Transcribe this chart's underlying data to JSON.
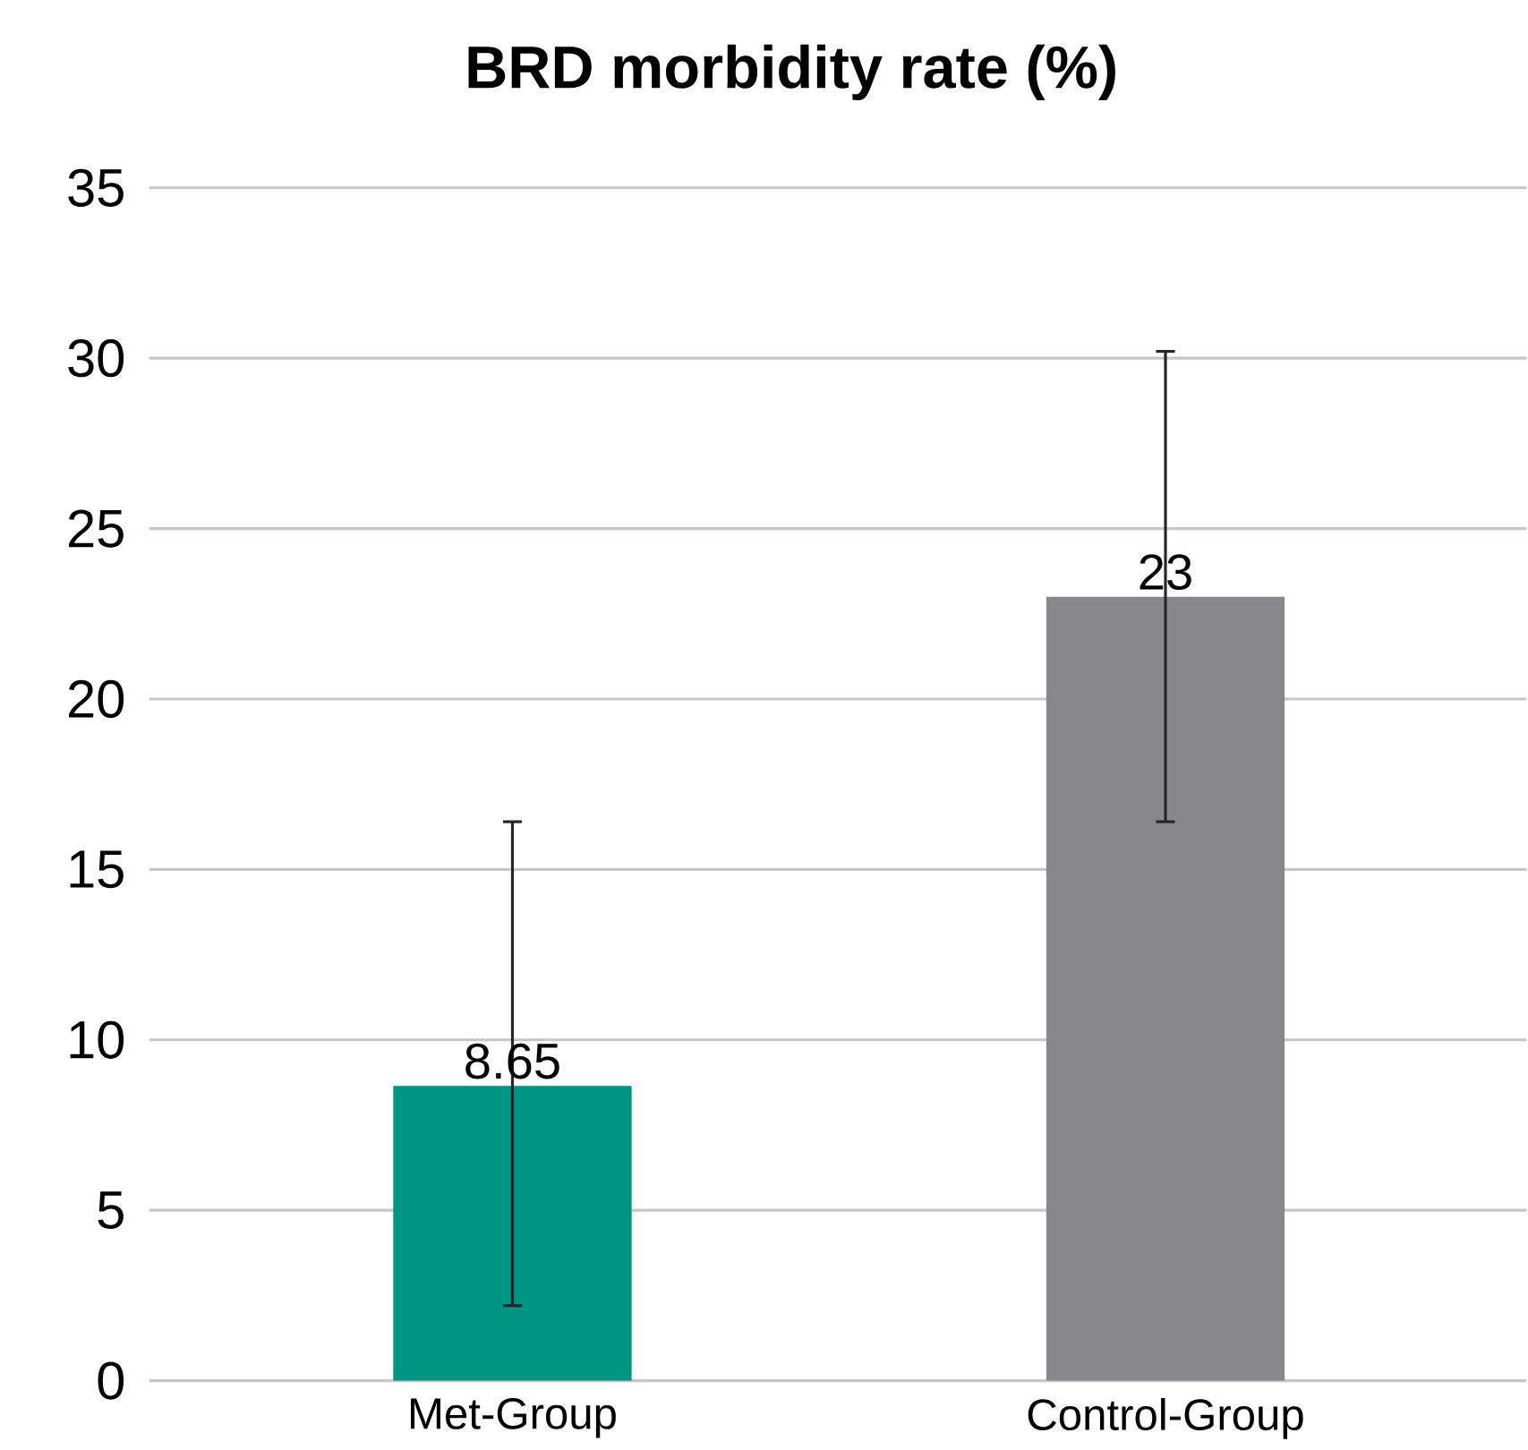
{
  "chart_data": {
    "type": "bar",
    "title": "BRD morbidity rate (%)",
    "categories": [
      "Met-Group",
      "Control-Group"
    ],
    "values": [
      8.65,
      23
    ],
    "colors": [
      "#009482",
      "#88888c"
    ],
    "errors": [
      [
        2.2,
        16.4
      ],
      [
        16.4,
        30.2
      ]
    ],
    "data_labels": true,
    "ylim": [
      0,
      35
    ],
    "yticks": [
      0,
      5,
      10,
      15,
      20,
      25,
      30,
      35
    ],
    "grid": "y"
  }
}
